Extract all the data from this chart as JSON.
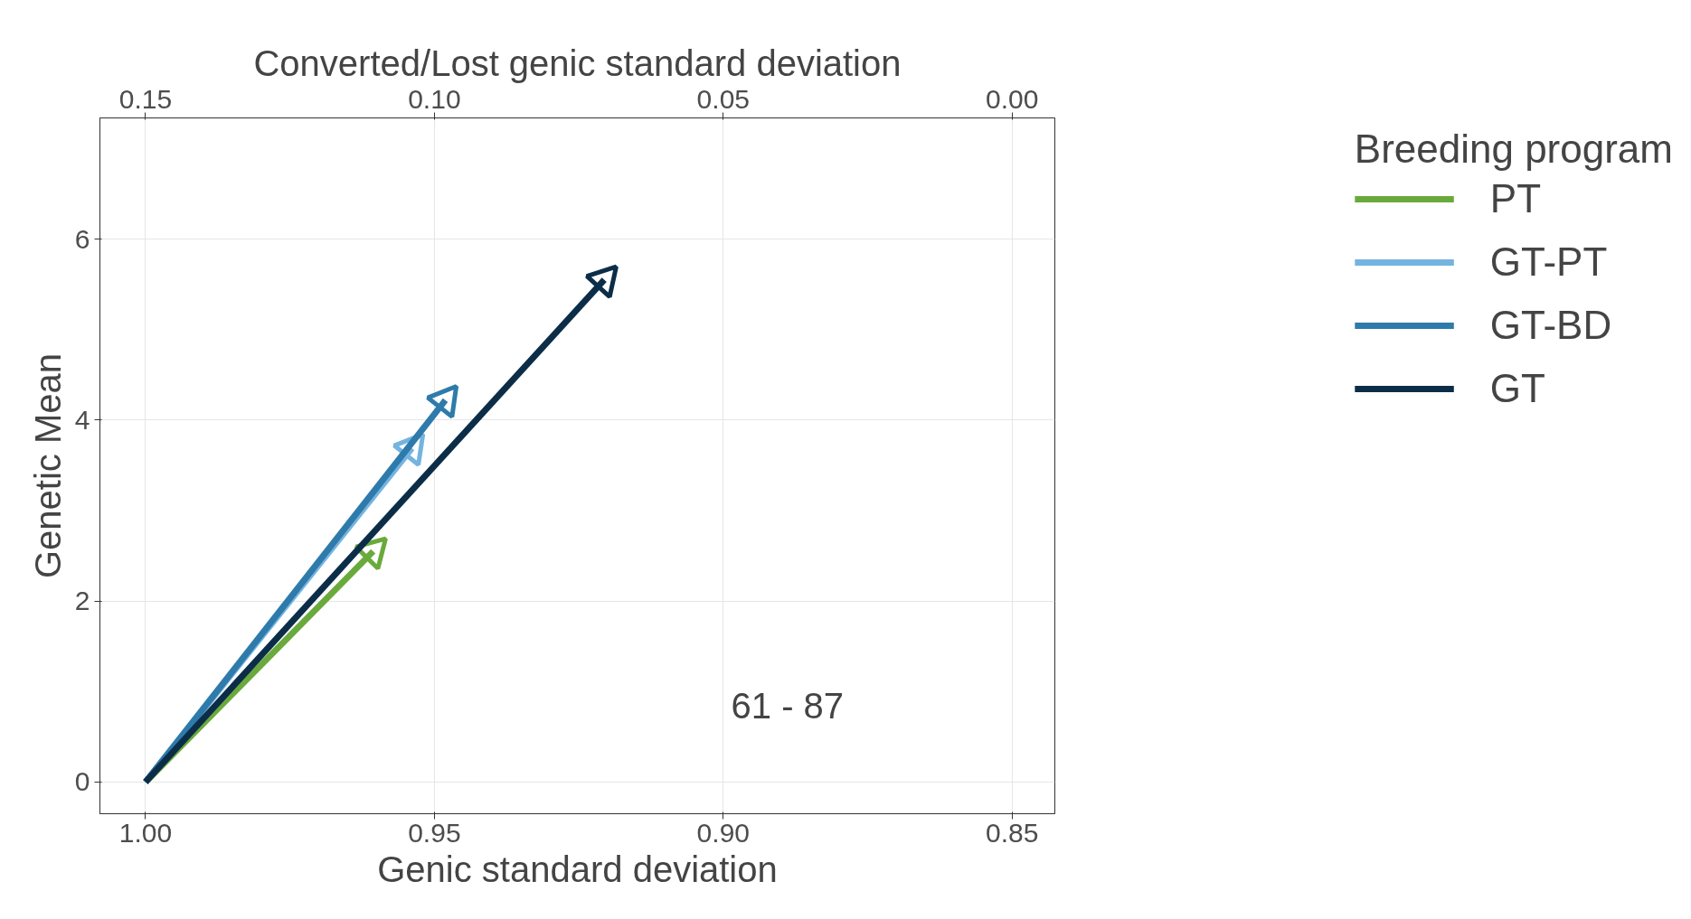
{
  "chart_data": {
    "type": "line",
    "xlabel": "Genic standard deviation",
    "ylabel": "Genetic Mean",
    "x2label": "Converted/Lost genic standard deviation",
    "legend_title": "Breeding program",
    "xlim": [
      1.0079,
      0.8426
    ],
    "xticks": [
      {
        "value": 1.0,
        "label": "1.00"
      },
      0.95,
      {
        "value": 0.9,
        "label": "0.90"
      },
      0.85
    ],
    "x2lim": [
      0.1579,
      -0.0074
    ],
    "x2ticks": [
      0.15,
      {
        "value": 0.1,
        "label": "0.10"
      },
      0.05,
      {
        "value": 0.0,
        "label": "0.00"
      }
    ],
    "ylim": [
      -0.35,
      7.34
    ],
    "yticks": [
      0,
      2,
      4,
      6
    ],
    "series": [
      {
        "name": "PT",
        "color": "#6aaa3c",
        "x": [
          1.0,
          0.9606
        ],
        "values": [
          0,
          2.55
        ]
      },
      {
        "name": "GT-PT",
        "color": "#74b4e0",
        "x": [
          1.0,
          0.9539
        ],
        "values": [
          0,
          3.69
        ]
      },
      {
        "name": "GT-BD",
        "color": "#2e7bab",
        "x": [
          1.0,
          0.9481
        ],
        "values": [
          0,
          4.22
        ]
      },
      {
        "name": "GT",
        "color": "#0c2d48",
        "x": [
          1.0,
          0.9206
        ],
        "values": [
          0,
          5.55
        ]
      }
    ],
    "annotations": [
      "61 - 87"
    ],
    "grid": true,
    "legend": "right",
    "marker": "triangle",
    "line_style": "solid"
  }
}
